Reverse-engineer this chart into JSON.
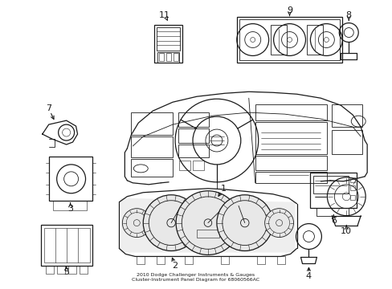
{
  "title": "2010 Dodge Challenger Instruments & Gauges\nCluster-Instrument Panel Diagram for 68060566AC",
  "background_color": "#ffffff",
  "line_color": "#1a1a1a",
  "fig_width": 4.89,
  "fig_height": 3.6,
  "dpi": 100
}
